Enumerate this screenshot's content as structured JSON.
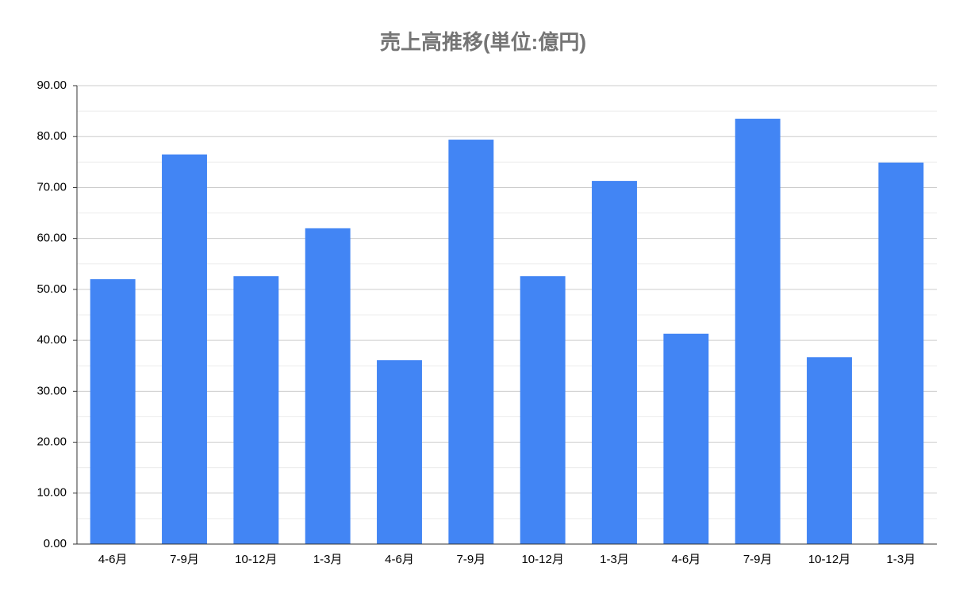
{
  "chart_data": {
    "type": "bar",
    "title": "売上高推移(単位:億円)",
    "categories": [
      "4-6月",
      "7-9月",
      "10-12月",
      "1-3月",
      "4-6月",
      "7-9月",
      "10-12月",
      "1-3月",
      "4-6月",
      "7-9月",
      "10-12月",
      "1-3月"
    ],
    "values": [
      52.0,
      76.5,
      52.6,
      62.0,
      36.1,
      79.4,
      52.6,
      71.3,
      41.3,
      83.5,
      36.7,
      74.9
    ],
    "color": "#4285f4",
    "ylim": [
      0,
      90
    ],
    "yticks": [
      {
        "value": 0,
        "label": "0.00"
      },
      {
        "value": 10,
        "label": "10.00"
      },
      {
        "value": 20,
        "label": "20.00"
      },
      {
        "value": 30,
        "label": "30.00"
      },
      {
        "value": 40,
        "label": "40.00"
      },
      {
        "value": 50,
        "label": "50.00"
      },
      {
        "value": 60,
        "label": "60.00"
      },
      {
        "value": 70,
        "label": "70.00"
      },
      {
        "value": 80,
        "label": "80.00"
      },
      {
        "value": 90,
        "label": "90.00"
      }
    ],
    "grid": true,
    "minor_grid": true
  }
}
